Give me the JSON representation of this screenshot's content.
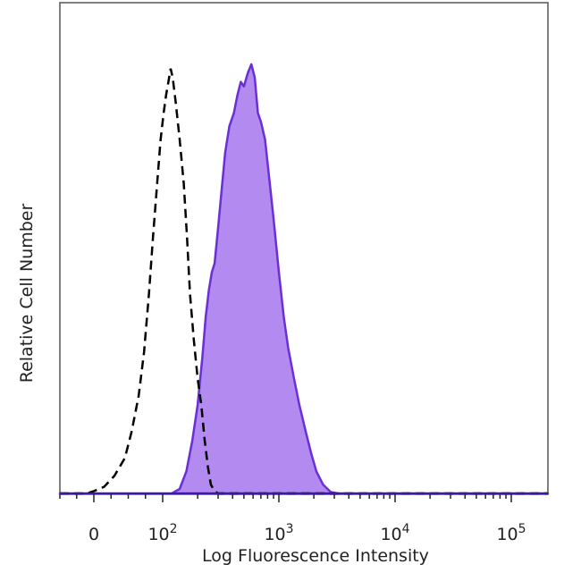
{
  "chart_data": {
    "type": "area",
    "title": "",
    "xlabel": "Log Fluorescence Intensity",
    "ylabel": "Relative Cell Number",
    "xscale": "biexponential",
    "x_tick_labels": [
      {
        "value": 0,
        "base": "0",
        "exp": ""
      },
      {
        "value": 100,
        "base": "10",
        "exp": "2"
      },
      {
        "value": 1000,
        "base": "10",
        "exp": "3"
      },
      {
        "value": 10000,
        "base": "10",
        "exp": "4"
      },
      {
        "value": 100000,
        "base": "10",
        "exp": "5"
      }
    ],
    "xlim": [
      -50,
      250000
    ],
    "ylim": [
      0,
      100
    ],
    "grid": false,
    "legend": "none",
    "series": [
      {
        "style": "dashed-line",
        "color": "#000000",
        "points": [
          [
            -50,
            0
          ],
          [
            -10,
            0
          ],
          [
            0,
            0.5
          ],
          [
            15,
            1.5
          ],
          [
            30,
            4
          ],
          [
            45,
            8
          ],
          [
            55,
            14
          ],
          [
            65,
            22
          ],
          [
            73,
            32
          ],
          [
            80,
            45
          ],
          [
            86,
            58
          ],
          [
            92,
            70
          ],
          [
            97,
            80
          ],
          [
            102,
            86
          ],
          [
            107,
            90
          ],
          [
            112,
            93
          ],
          [
            117,
            96
          ],
          [
            122,
            94
          ],
          [
            130,
            88
          ],
          [
            140,
            80
          ],
          [
            152,
            70
          ],
          [
            162,
            58
          ],
          [
            172,
            45
          ],
          [
            185,
            35
          ],
          [
            200,
            26
          ],
          [
            215,
            20
          ],
          [
            230,
            12
          ],
          [
            245,
            6
          ],
          [
            260,
            2
          ],
          [
            280,
            0.5
          ],
          [
            300,
            0
          ],
          [
            5000,
            0
          ],
          [
            250000,
            0
          ]
        ]
      },
      {
        "style": "filled",
        "color": "#6b2fd6",
        "fill": "#b28af0",
        "points": [
          [
            -50,
            0
          ],
          [
            120,
            0
          ],
          [
            140,
            1
          ],
          [
            160,
            5
          ],
          [
            180,
            12
          ],
          [
            200,
            20
          ],
          [
            220,
            31
          ],
          [
            235,
            40
          ],
          [
            250,
            46
          ],
          [
            265,
            50
          ],
          [
            280,
            52
          ],
          [
            300,
            60
          ],
          [
            320,
            68
          ],
          [
            345,
            77
          ],
          [
            375,
            83
          ],
          [
            410,
            86
          ],
          [
            440,
            90
          ],
          [
            470,
            93
          ],
          [
            500,
            92
          ],
          [
            540,
            95
          ],
          [
            580,
            97
          ],
          [
            620,
            94
          ],
          [
            660,
            86
          ],
          [
            700,
            84
          ],
          [
            760,
            80
          ],
          [
            820,
            72
          ],
          [
            900,
            62
          ],
          [
            1000,
            50
          ],
          [
            1100,
            40
          ],
          [
            1200,
            33
          ],
          [
            1350,
            26
          ],
          [
            1500,
            20
          ],
          [
            1700,
            14
          ],
          [
            1900,
            9
          ],
          [
            2100,
            5
          ],
          [
            2400,
            2
          ],
          [
            2800,
            0.3
          ],
          [
            3200,
            0
          ],
          [
            250000,
            0
          ]
        ]
      }
    ]
  }
}
